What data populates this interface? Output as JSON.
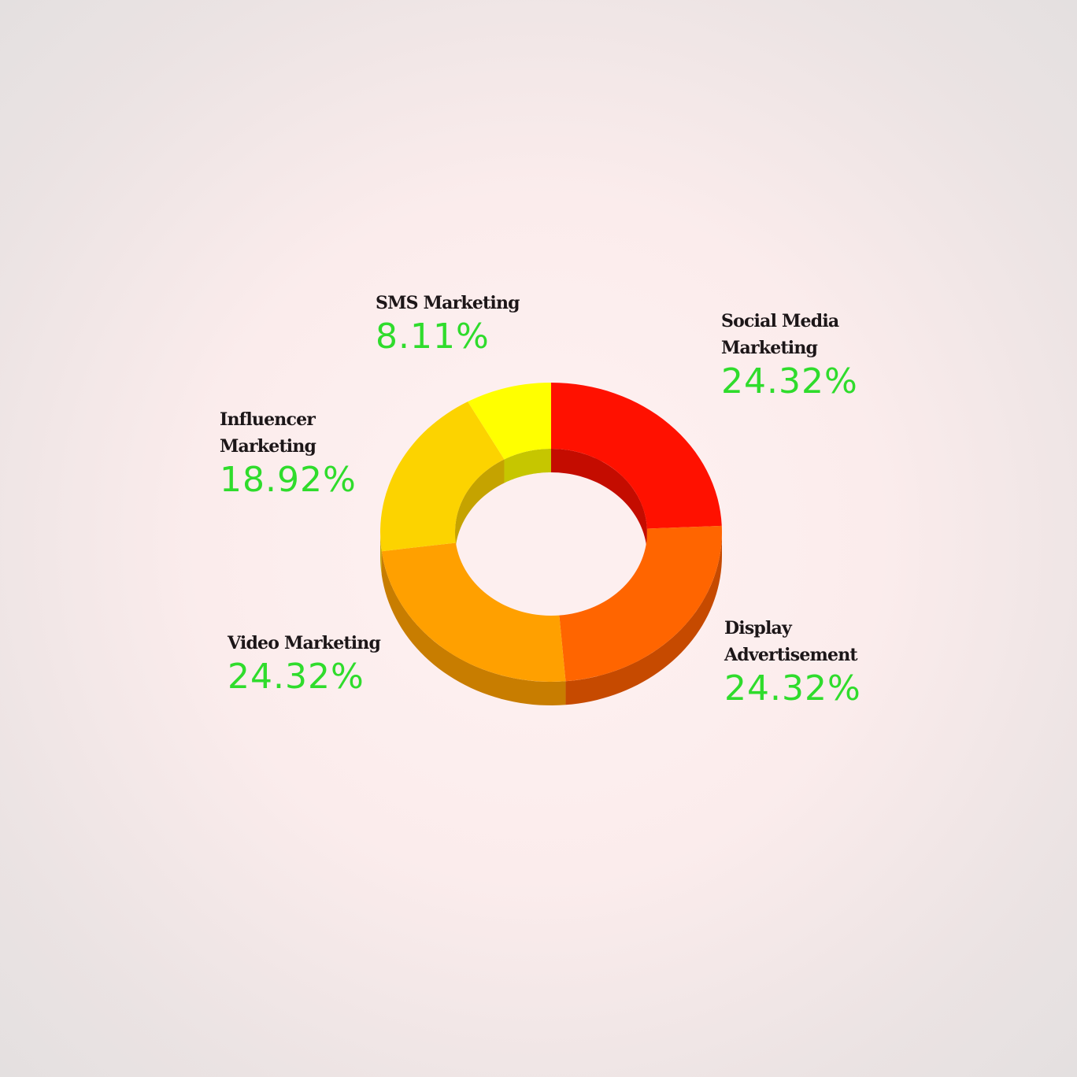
{
  "chart_data": {
    "type": "pie",
    "style": "3d-donut",
    "title": "",
    "slices": [
      {
        "label": "Social Media\nMarketing",
        "value": 24.32,
        "display": "24.32%",
        "color": "#ff1100",
        "side_color": "#c40c00"
      },
      {
        "label": "Display\nAdvertisement",
        "value": 24.32,
        "display": "24.32%",
        "color": "#ff6500",
        "side_color": "#c64a00"
      },
      {
        "label": "Video Marketing",
        "value": 24.32,
        "display": "24.32%",
        "color": "#ffa000",
        "side_color": "#c87d00"
      },
      {
        "label": "Influencer\nMarketing",
        "value": 18.92,
        "display": "18.92%",
        "color": "#fcd300",
        "side_color": "#c5a300"
      },
      {
        "label": "SMS Marketing",
        "value": 8.11,
        "display": "8.11%",
        "color": "#ffff00",
        "side_color": "#c6c600"
      }
    ],
    "value_color": "#2fdc2c"
  }
}
